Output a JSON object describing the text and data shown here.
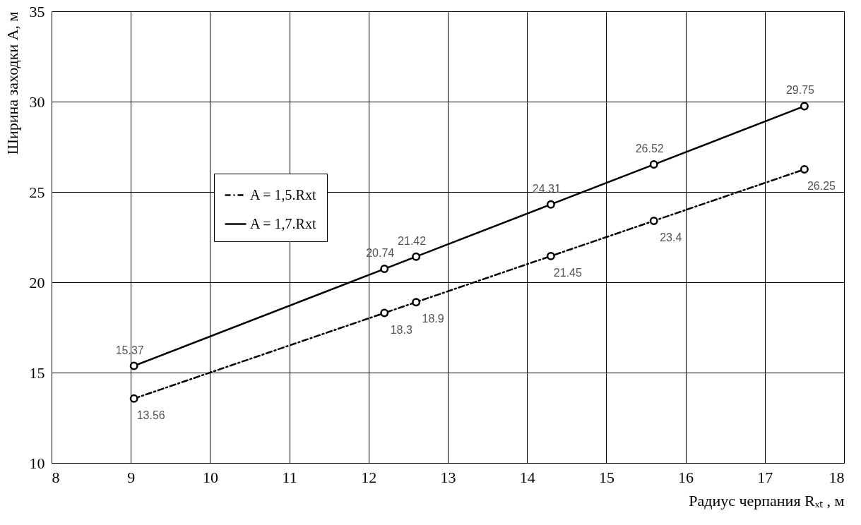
{
  "chart_data": {
    "type": "line",
    "xlabel": "Радиус черпания Rₓₜ , м",
    "ylabel": "Ширина заходки А, м",
    "xlim": [
      8,
      18
    ],
    "xticks": [
      8,
      9,
      10,
      11,
      12,
      13,
      14,
      15,
      16,
      17,
      18
    ],
    "ylim": [
      10,
      35
    ],
    "yticks": [
      10,
      15,
      20,
      25,
      30,
      35
    ],
    "grid": true,
    "legend": "top left",
    "marker": "circle",
    "data_labels": true,
    "series": [
      {
        "name": "A = 1,5.Rxt",
        "color": "#000000",
        "line_style": "dashed",
        "x": [
          9.04,
          12.2,
          12.6,
          14.3,
          15.6,
          17.5
        ],
        "values": [
          13.56,
          18.3,
          18.9,
          21.45,
          23.4,
          26.25
        ]
      },
      {
        "name": "A = 1,7.Rxt",
        "color": "#000000",
        "line_style": "solid",
        "x": [
          9.04,
          12.2,
          12.6,
          14.3,
          15.6,
          17.5
        ],
        "values": [
          15.37,
          20.74,
          21.42,
          24.31,
          26.52,
          29.75
        ]
      }
    ]
  }
}
